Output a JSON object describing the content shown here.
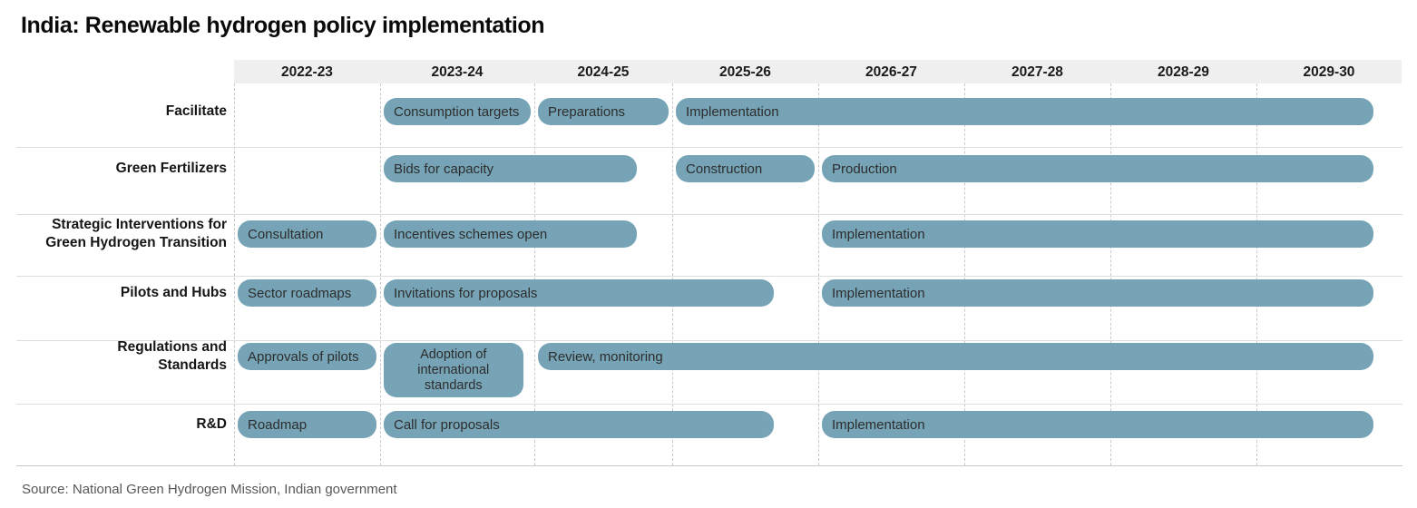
{
  "title": "India: Renewable hydrogen policy implementation",
  "source_note": "Source: National Green Hydrogen Mission, Indian government",
  "colors": {
    "bar": "#76a4b6",
    "bar_text": "#2d2d2d",
    "header_bg": "#efefef",
    "gridline_dash": "#c9c9c9",
    "row_separator": "#dedede",
    "bottom_rule": "#c9c9c9",
    "source_text": "#575757"
  },
  "chart_data": {
    "type": "bar",
    "subtype": "gantt-timeline",
    "title": "India: Renewable hydrogen policy implementation",
    "categories": [
      "2022-23",
      "2023-24",
      "2024-25",
      "2025-26",
      "2026-27",
      "2027-28",
      "2028-29",
      "2029-30"
    ],
    "x_axis": {
      "unit": "fiscal year column index (0 = start of 2022-23, 8 = end of 2029-30)",
      "range": [
        0,
        8
      ],
      "gridlines": "dashed vertical at each year boundary"
    },
    "legend": "none",
    "rows": [
      {
        "label": "Facilitate",
        "label_lines": [
          "Facilitate"
        ],
        "bars": [
          {
            "label": "Consumption targets",
            "start": 1,
            "end": 2
          },
          {
            "label": "Preparations",
            "start": 2,
            "end": 3
          },
          {
            "label": "Implementation",
            "start": 3,
            "end": 7.83
          }
        ]
      },
      {
        "label": "Green Fertilizers",
        "label_lines": [
          "Green Fertilizers"
        ],
        "bars": [
          {
            "label": "Bids for capacity",
            "start": 1,
            "end": 2.77
          },
          {
            "label": "Construction",
            "start": 3,
            "end": 4
          },
          {
            "label": "Production",
            "start": 4,
            "end": 7.83
          }
        ]
      },
      {
        "label": "Strategic Interventions for Green Hydrogen Transition",
        "label_lines": [
          "Strategic Interventions for",
          "Green Hydrogen Transition"
        ],
        "bars": [
          {
            "label": "Consultation",
            "start": 0,
            "end": 1
          },
          {
            "label": "Incentives schemes open",
            "start": 1,
            "end": 2.77
          },
          {
            "label": "Implementation",
            "start": 4,
            "end": 7.83
          }
        ]
      },
      {
        "label": "Pilots and Hubs",
        "label_lines": [
          "Pilots and Hubs"
        ],
        "bars": [
          {
            "label": "Sector roadmaps",
            "start": 0,
            "end": 1
          },
          {
            "label": "Invitations for proposals",
            "start": 1,
            "end": 3.72
          },
          {
            "label": "Implementation",
            "start": 4,
            "end": 7.83
          }
        ]
      },
      {
        "label": "Regulations and Standards",
        "label_lines": [
          "Regulations and",
          "Standards"
        ],
        "bars": [
          {
            "label": "Approvals of pilots",
            "start": 0,
            "end": 1
          },
          {
            "label": "Adoption of international standards",
            "start": 1,
            "end": 1.95,
            "tall": true
          },
          {
            "label": "Review, monitoring",
            "start": 2,
            "end": 7.83
          }
        ]
      },
      {
        "label": "R&D",
        "label_lines": [
          "R&D"
        ],
        "bars": [
          {
            "label": "Roadmap",
            "start": 0,
            "end": 1
          },
          {
            "label": "Call for proposals",
            "start": 1,
            "end": 3.72
          },
          {
            "label": "Implementation",
            "start": 4,
            "end": 7.83
          }
        ]
      }
    ]
  }
}
